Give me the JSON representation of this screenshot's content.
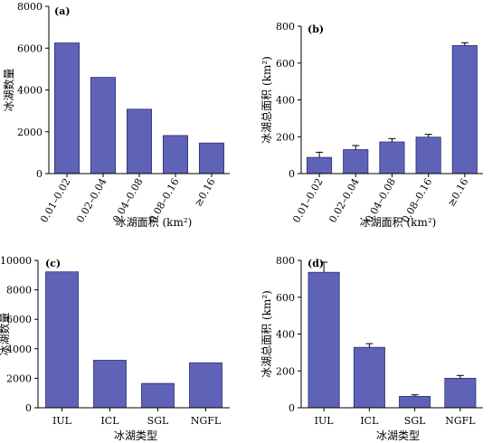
{
  "colors": {
    "bar_fill": "#5f63b8",
    "bar_stroke": "#2c2f6e",
    "axis": "#000000"
  },
  "chart_data": [
    {
      "type": "bar",
      "panel_label": "(a)",
      "ylabel": "冰湖数量",
      "xlabel": "冰湖面积 (km²)",
      "categories": [
        "0.01–0.02",
        "0.02–0.04",
        "0.04–0.08",
        "0.08–0.16",
        "≥0.16"
      ],
      "values": [
        6250,
        4600,
        3080,
        1820,
        1460
      ],
      "ylim": [
        0,
        8000
      ],
      "yticks": [
        0,
        2000,
        4000,
        6000,
        8000
      ],
      "rotate_xticks": true
    },
    {
      "type": "bar",
      "panel_label": "(b)",
      "ylabel": "冰湖总面积 (km²)",
      "xlabel": "冰湖面积 (km²)",
      "categories": [
        "0.01–0.02",
        "0.02–0.04",
        "0.04–0.08",
        "0.08–0.16",
        "≥0.16"
      ],
      "values": [
        88,
        130,
        172,
        198,
        695
      ],
      "errors": [
        28,
        22,
        18,
        15,
        15
      ],
      "ylim": [
        0,
        800
      ],
      "yticks": [
        0,
        200,
        400,
        600,
        800
      ],
      "rotate_xticks": true
    },
    {
      "type": "bar",
      "panel_label": "(c)",
      "ylabel": "冰湖数量",
      "xlabel": "冰湖类型",
      "categories": [
        "IUL",
        "ICL",
        "SGL",
        "NGFL"
      ],
      "values": [
        9220,
        3220,
        1650,
        3050
      ],
      "ylim": [
        0,
        10000
      ],
      "yticks": [
        0,
        2000,
        4000,
        6000,
        8000,
        10000
      ],
      "rotate_xticks": false
    },
    {
      "type": "bar",
      "panel_label": "(d)",
      "ylabel": "冰湖总面积 (km²)",
      "xlabel": "冰湖类型",
      "categories": [
        "IUL",
        "ICL",
        "SGL",
        "NGFL"
      ],
      "values": [
        735,
        328,
        62,
        160
      ],
      "errors": [
        55,
        20,
        8,
        15
      ],
      "ylim": [
        0,
        800
      ],
      "yticks": [
        0,
        200,
        400,
        600,
        800
      ],
      "rotate_xticks": false
    }
  ]
}
